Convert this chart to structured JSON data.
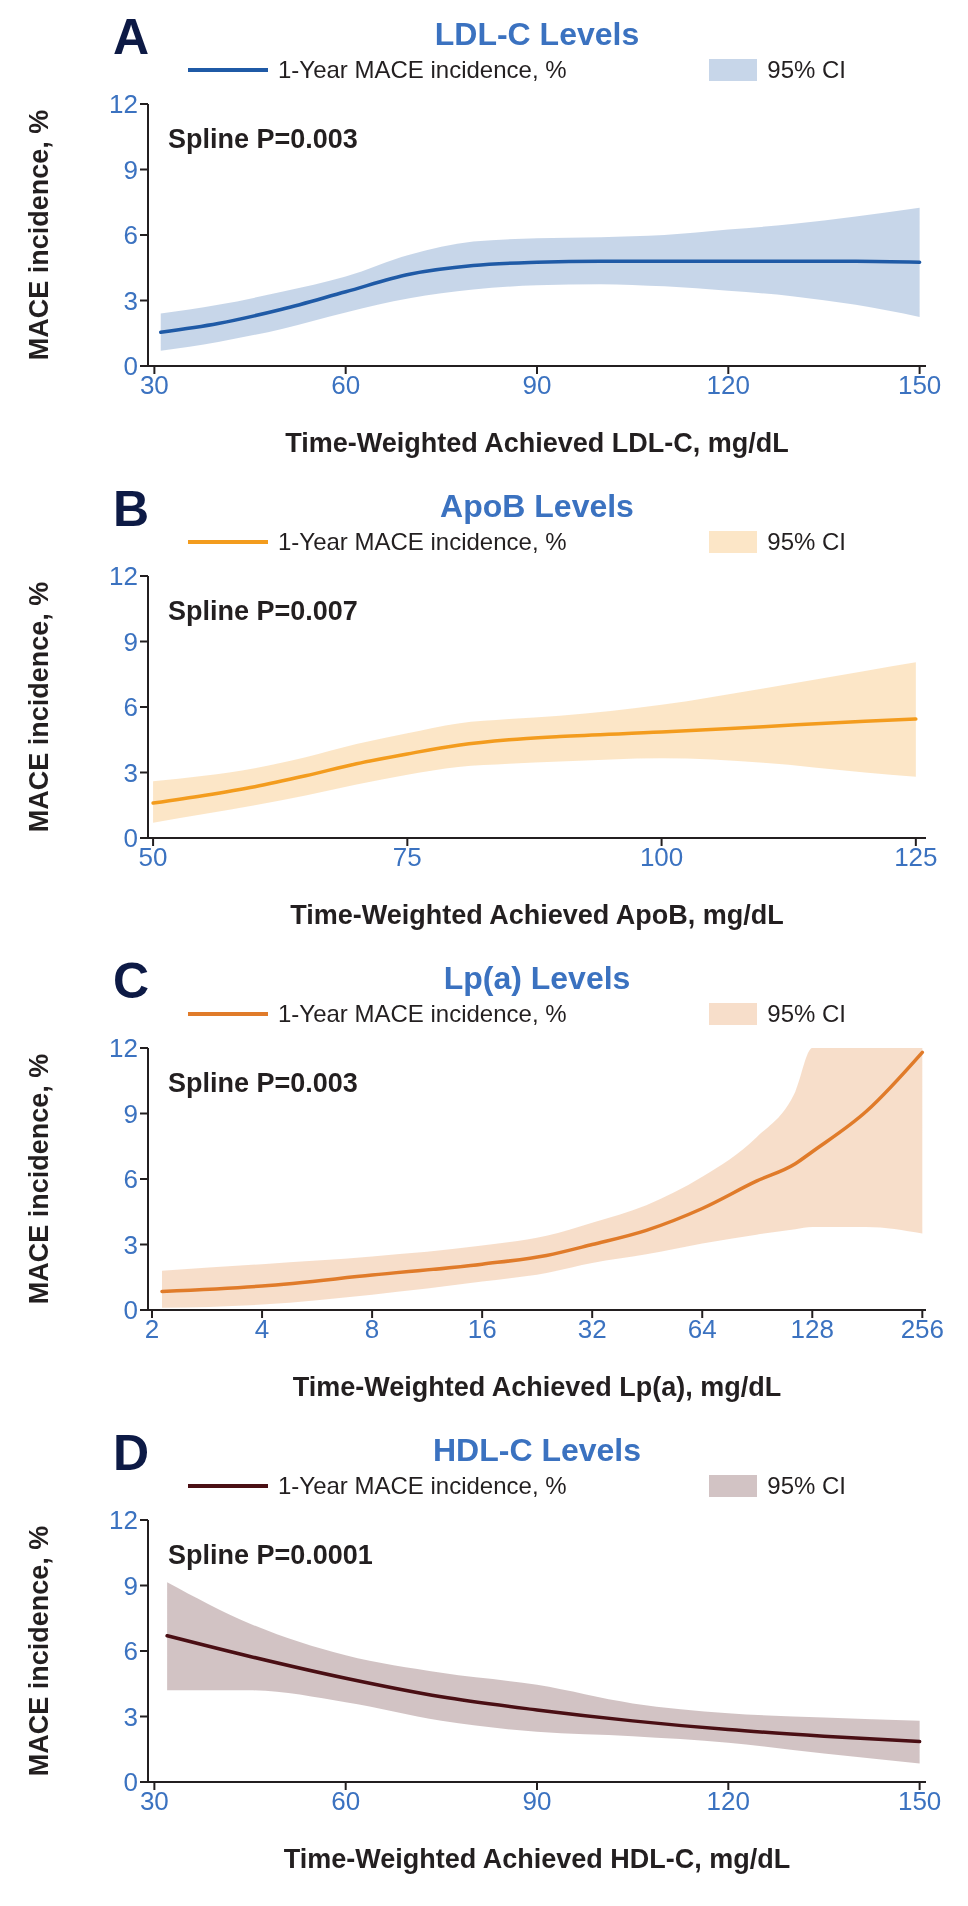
{
  "chart_data": [
    {
      "type": "line",
      "title": "LDL-C Levels",
      "xlabel": "Time-Weighted Achieved LDL-C, mg/dL",
      "ylabel": "MACE incidence, %",
      "annotations": [
        "A",
        "Spline P=0.003",
        "95% CI"
      ],
      "legend": "top",
      "marker": "none",
      "line_style": "solid",
      "xlim": [
        29,
        151
      ],
      "xticks": [
        30,
        60,
        90,
        120,
        150
      ],
      "ylim": [
        0,
        12
      ],
      "yticks": [
        0,
        3,
        6,
        9,
        12
      ],
      "x": [
        31,
        40,
        50,
        60,
        70,
        80,
        90,
        100,
        110,
        120,
        130,
        140,
        150
      ],
      "series": [
        {
          "name": "1-Year MACE incidence, %",
          "color": "#1f5aa6",
          "values": [
            1.55,
            1.95,
            2.6,
            3.4,
            4.2,
            4.6,
            4.75,
            4.8,
            4.8,
            4.8,
            4.8,
            4.8,
            4.75
          ],
          "lower": [
            0.7,
            1.1,
            1.7,
            2.45,
            3.1,
            3.5,
            3.7,
            3.75,
            3.65,
            3.45,
            3.2,
            2.8,
            2.25
          ],
          "upper": [
            2.4,
            2.8,
            3.4,
            4.1,
            5.1,
            5.7,
            5.85,
            5.9,
            6.0,
            6.25,
            6.5,
            6.85,
            7.25
          ]
        }
      ]
    },
    {
      "type": "line",
      "title": "ApoB Levels",
      "xlabel": "Time-Weighted Achieved ApoB, mg/dL",
      "ylabel": "MACE incidence, %",
      "annotations": [
        "B",
        "Spline P=0.007",
        "95% CI"
      ],
      "legend": "top",
      "marker": "none",
      "line_style": "solid",
      "xlim": [
        49.5,
        126
      ],
      "xticks": [
        50,
        75,
        100,
        125
      ],
      "ylim": [
        0,
        12
      ],
      "yticks": [
        0,
        3,
        6,
        9,
        12
      ],
      "x": [
        50,
        55,
        60,
        65,
        70,
        75,
        80,
        85,
        90,
        100,
        110,
        120,
        125
      ],
      "series": [
        {
          "name": "1-Year MACE incidence, %",
          "color": "#f39c1e",
          "values": [
            1.6,
            1.95,
            2.35,
            2.85,
            3.4,
            3.85,
            4.25,
            4.5,
            4.65,
            4.85,
            5.1,
            5.35,
            5.45
          ],
          "lower": [
            0.7,
            1.1,
            1.5,
            1.95,
            2.45,
            2.9,
            3.25,
            3.4,
            3.5,
            3.65,
            3.45,
            3.0,
            2.8
          ],
          "upper": [
            2.6,
            2.85,
            3.2,
            3.7,
            4.3,
            4.8,
            5.25,
            5.45,
            5.6,
            6.1,
            6.85,
            7.65,
            8.05
          ]
        }
      ]
    },
    {
      "type": "line",
      "title": "Lp(a) Levels",
      "xlabel": "Time-Weighted Achieved Lp(a), mg/dL",
      "ylabel": "MACE incidence, %",
      "annotations": [
        "C",
        "Spline P=0.003",
        "95% CI"
      ],
      "legend": "top",
      "marker": "none",
      "line_style": "solid",
      "log": "x",
      "xlim": [
        1.95,
        262
      ],
      "xticks": [
        2,
        4,
        8,
        16,
        32,
        64,
        128,
        256
      ],
      "ylim": [
        0,
        12
      ],
      "yticks": [
        0,
        3,
        6,
        9,
        12
      ],
      "x": [
        2.13,
        4,
        8,
        16,
        24,
        32,
        45,
        64,
        90,
        115,
        128,
        180,
        256
      ],
      "series": [
        {
          "name": "1-Year MACE incidence, %",
          "color": "#e07b2a",
          "values": [
            0.85,
            1.1,
            1.6,
            2.1,
            2.5,
            3.0,
            3.65,
            4.65,
            5.9,
            6.7,
            7.25,
            9.1,
            11.8
          ],
          "lower": [
            0.1,
            0.25,
            0.7,
            1.3,
            1.7,
            2.15,
            2.55,
            3.05,
            3.45,
            3.7,
            3.8,
            3.8,
            3.5
          ],
          "upper": [
            1.8,
            2.1,
            2.45,
            2.95,
            3.4,
            4.0,
            4.8,
            6.1,
            7.9,
            10,
            12,
            12,
            12
          ]
        }
      ]
    },
    {
      "type": "line",
      "title": "HDL-C Levels",
      "xlabel": "Time-Weighted Achieved HDL-C, mg/dL",
      "ylabel": "MACE incidence, %",
      "annotations": [
        "D",
        "Spline P=0.0001",
        "95% CI"
      ],
      "legend": "top",
      "marker": "none",
      "line_style": "solid",
      "xlim": [
        29,
        151
      ],
      "xticks": [
        30,
        60,
        90,
        120,
        150
      ],
      "ylim": [
        0,
        12
      ],
      "yticks": [
        0,
        3,
        6,
        9,
        12
      ],
      "x": [
        32,
        45,
        60,
        75,
        90,
        105,
        120,
        135,
        150
      ],
      "series": [
        {
          "name": "1-Year MACE incidence, %",
          "color": "#4a0f14",
          "values": [
            6.7,
            5.75,
            4.75,
            3.9,
            3.3,
            2.8,
            2.4,
            2.1,
            1.85
          ],
          "lower": [
            4.2,
            4.2,
            3.65,
            2.8,
            2.3,
            2.1,
            1.8,
            1.3,
            0.85
          ],
          "upper": [
            9.15,
            7.25,
            5.8,
            5.0,
            4.45,
            3.6,
            3.15,
            2.95,
            2.8
          ]
        }
      ]
    }
  ]
}
